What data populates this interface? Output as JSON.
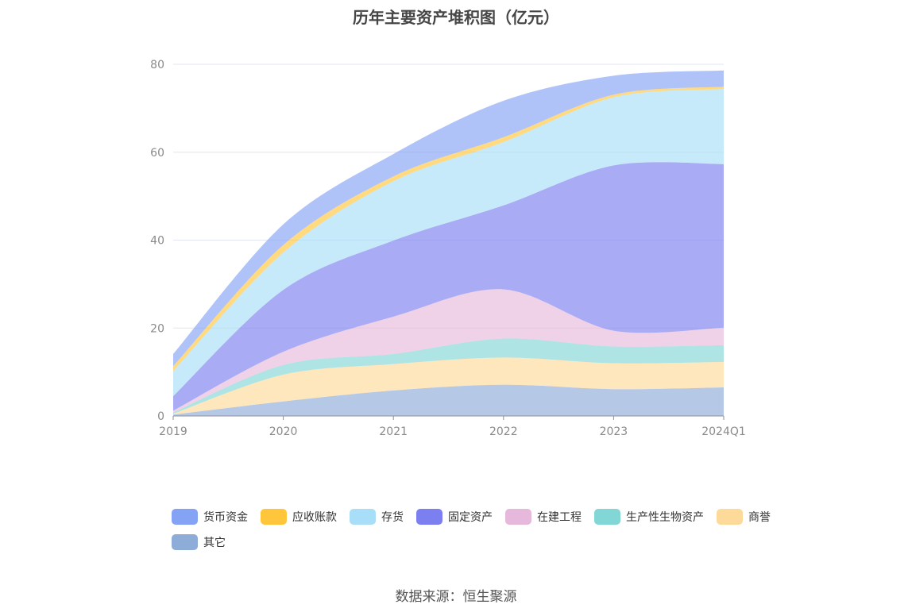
{
  "title": "历年主要资产堆积图（亿元）",
  "source": "数据来源：恒生聚源",
  "chart_data": {
    "type": "area",
    "stacked": true,
    "title": "历年主要资产堆积图（亿元）",
    "categories": [
      "2019",
      "2020",
      "2021",
      "2022",
      "2023",
      "2024Q1"
    ],
    "ylim": [
      0,
      80
    ],
    "yticks": [
      "0",
      "20",
      "40",
      "60",
      "80"
    ],
    "grid": true,
    "legend_position": "bottom",
    "series": [
      {
        "name": "其它",
        "color": "#8eacd8",
        "values": [
          0.3,
          3.3,
          5.8,
          7.1,
          6.1,
          6.5
        ]
      },
      {
        "name": "商誉",
        "color": "#fdd99a",
        "values": [
          0.2,
          6.1,
          6.0,
          6.2,
          5.9,
          5.8
        ]
      },
      {
        "name": "生产性生物资产",
        "color": "#83d6d6",
        "values": [
          0.3,
          2.2,
          2.3,
          4.3,
          3.8,
          3.8
        ]
      },
      {
        "name": "在建工程",
        "color": "#e6b8db",
        "values": [
          0.4,
          3.0,
          8.5,
          11.2,
          3.6,
          4.0
        ]
      },
      {
        "name": "固定资产",
        "color": "#7b7ff0",
        "values": [
          3.3,
          14.1,
          17.3,
          19.1,
          37.6,
          37.2
        ]
      },
      {
        "name": "存货",
        "color": "#a8def7",
        "values": [
          5.7,
          8.5,
          13.5,
          14.4,
          15.5,
          17.1
        ]
      },
      {
        "name": "应收账款",
        "color": "#ffc63c",
        "values": [
          1.1,
          1.7,
          1.1,
          1.1,
          0.6,
          0.5
        ]
      },
      {
        "name": "货币资金",
        "color": "#85a3f5",
        "values": [
          2.8,
          4.7,
          5.1,
          8.3,
          4.3,
          3.7
        ]
      }
    ]
  }
}
